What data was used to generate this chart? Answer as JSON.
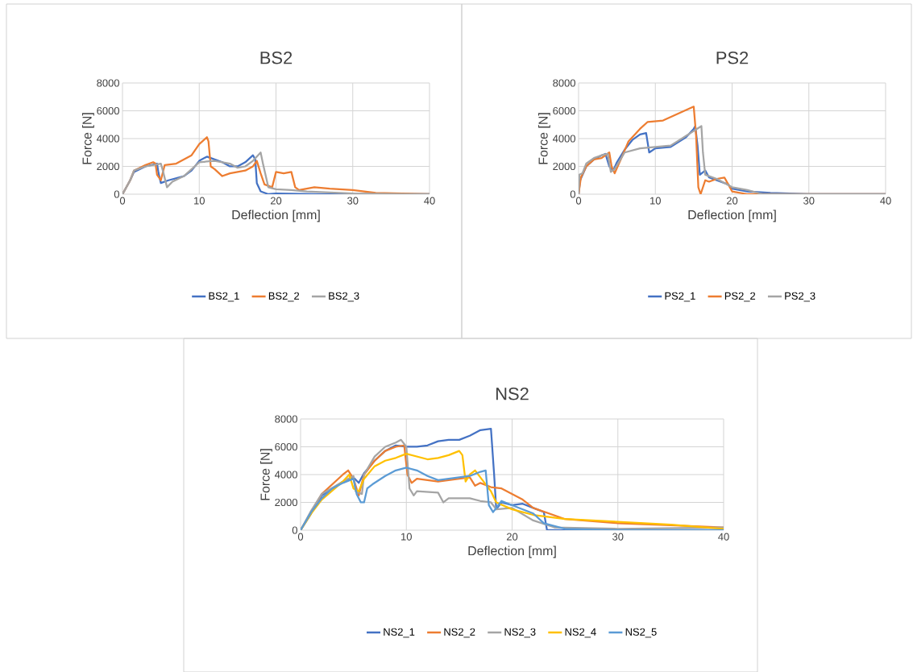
{
  "chart_data": [
    {
      "type": "line",
      "title": "BS2",
      "xlabel": "Deflection [mm]",
      "ylabel": "Force [N]",
      "xlim": [
        0,
        40
      ],
      "ylim": [
        0,
        8000
      ],
      "xticks": [
        0,
        10,
        20,
        30,
        40
      ],
      "yticks": [
        0,
        2000,
        4000,
        6000,
        8000
      ],
      "grid": true,
      "legend": "bottom",
      "series": [
        {
          "name": "BS2_1",
          "color": "#4472c4",
          "x": [
            0,
            1,
            1.5,
            3,
            4.5,
            4.7,
            5,
            6,
            8,
            9,
            10,
            11,
            12,
            13,
            14,
            15,
            16,
            17,
            17.3,
            17.5,
            18,
            19,
            20,
            25,
            40
          ],
          "values": [
            0,
            1000,
            1600,
            2000,
            2200,
            1500,
            800,
            1000,
            1300,
            1700,
            2400,
            2700,
            2500,
            2300,
            2000,
            2000,
            2300,
            2800,
            2500,
            800,
            200,
            0,
            50,
            0,
            0
          ]
        },
        {
          "name": "BS2_2",
          "color": "#ed7d31",
          "x": [
            0,
            1,
            1.5,
            3,
            4,
            4.3,
            4.5,
            5,
            5.5,
            7,
            9,
            10,
            11,
            11.2,
            11.5,
            12,
            13,
            14,
            15,
            16,
            17,
            17.5,
            18,
            18.5,
            19.5,
            20,
            21,
            22,
            22.5,
            23,
            25,
            27,
            30,
            33,
            40
          ],
          "values": [
            0,
            1000,
            1700,
            2100,
            2300,
            2200,
            1400,
            1000,
            2100,
            2200,
            2800,
            3600,
            4100,
            3800,
            2000,
            1800,
            1300,
            1500,
            1600,
            1700,
            2000,
            2400,
            1500,
            700,
            500,
            1600,
            1500,
            1600,
            500,
            300,
            500,
            400,
            300,
            100,
            0
          ]
        },
        {
          "name": "BS2_3",
          "color": "#a5a5a5",
          "x": [
            0,
            1,
            1.5,
            3,
            5,
            5.3,
            5.8,
            6.5,
            8,
            10,
            12,
            14,
            15,
            16,
            17,
            18,
            18.3,
            19,
            20,
            22,
            24,
            30,
            40
          ],
          "values": [
            0,
            1000,
            1700,
            2000,
            2200,
            1600,
            500,
            900,
            1300,
            2300,
            2400,
            2200,
            1900,
            2000,
            2400,
            3000,
            2200,
            500,
            350,
            300,
            200,
            50,
            0
          ]
        }
      ]
    },
    {
      "type": "line",
      "title": "PS2",
      "xlabel": "Deflection [mm]",
      "ylabel": "Force [N]",
      "xlim": [
        0,
        40
      ],
      "ylim": [
        0,
        8000
      ],
      "xticks": [
        0,
        10,
        20,
        30,
        40
      ],
      "yticks": [
        0,
        2000,
        4000,
        6000,
        8000
      ],
      "grid": true,
      "legend": "bottom",
      "series": [
        {
          "name": "PS2_1",
          "color": "#4472c4",
          "x": [
            0,
            0.2,
            1,
            2,
            3,
            3.5,
            4,
            4.5,
            5,
            6,
            7,
            8,
            8.8,
            9.2,
            10,
            12,
            14,
            15,
            15.2,
            15.5,
            15.8,
            16.5,
            17,
            18,
            19.5,
            20,
            22,
            25,
            30,
            40
          ],
          "values": [
            0,
            1000,
            2000,
            2500,
            2800,
            2900,
            2000,
            1700,
            2300,
            3200,
            3900,
            4300,
            4400,
            3000,
            3300,
            3400,
            4100,
            4700,
            4900,
            3500,
            1400,
            1700,
            1200,
            1000,
            700,
            400,
            200,
            100,
            0,
            0
          ]
        },
        {
          "name": "PS2_2",
          "color": "#ed7d31",
          "x": [
            0,
            0.3,
            1,
            2,
            3,
            4,
            4.3,
            4.7,
            5.5,
            6.5,
            8,
            9,
            11,
            13,
            15,
            15.3,
            15.6,
            15.9,
            16.5,
            17,
            18,
            19,
            19.5,
            20,
            22,
            40
          ],
          "values": [
            0,
            1200,
            2000,
            2500,
            2600,
            3000,
            2000,
            1500,
            2500,
            3800,
            4700,
            5200,
            5300,
            5800,
            6300,
            4300,
            500,
            0,
            1000,
            900,
            1100,
            1200,
            700,
            200,
            0,
            0
          ]
        },
        {
          "name": "PS2_3",
          "color": "#a5a5a5",
          "x": [
            0,
            0.1,
            0.5,
            1,
            2,
            3,
            3.8,
            4.2,
            4.7,
            6,
            8,
            10,
            12,
            14,
            16,
            16.2,
            16.5,
            18,
            20,
            22,
            24,
            40
          ],
          "values": [
            0,
            1400,
            1500,
            2200,
            2600,
            2800,
            2900,
            1600,
            1800,
            3000,
            3300,
            3400,
            3500,
            4200,
            4900,
            3000,
            1400,
            1100,
            500,
            300,
            0,
            0
          ]
        }
      ]
    },
    {
      "type": "line",
      "title": "NS2",
      "xlabel": "Deflection [mm]",
      "ylabel": "Force [N]",
      "xlim": [
        0,
        40
      ],
      "ylim": [
        0,
        8000
      ],
      "xticks": [
        0,
        10,
        20,
        30,
        40
      ],
      "yticks": [
        0,
        2000,
        4000,
        6000,
        8000
      ],
      "grid": true,
      "legend": "bottom",
      "series": [
        {
          "name": "NS2_1",
          "color": "#4472c4",
          "x": [
            0,
            1,
            2,
            4,
            5,
            5.5,
            6,
            7,
            8,
            9,
            10,
            11,
            12,
            13,
            14,
            15,
            16,
            17,
            18,
            18.3,
            18.5,
            19,
            20,
            21,
            22,
            23,
            23.3,
            25,
            40
          ],
          "values": [
            0,
            1200,
            2500,
            3500,
            3800,
            3400,
            4100,
            5000,
            5700,
            6100,
            6000,
            6000,
            6100,
            6400,
            6500,
            6500,
            6800,
            7200,
            7300,
            4000,
            1500,
            2000,
            1800,
            1900,
            1600,
            1300,
            0,
            0,
            0
          ]
        },
        {
          "name": "NS2_2",
          "color": "#ed7d31",
          "x": [
            0,
            1,
            2,
            3,
            4,
            4.5,
            5,
            5.5,
            6,
            7,
            8,
            9,
            9.8,
            10.1,
            10.5,
            11,
            13,
            15,
            16,
            16.5,
            17,
            18,
            19,
            20,
            21,
            22,
            25,
            30,
            35,
            40
          ],
          "values": [
            0,
            1300,
            2600,
            3300,
            4000,
            4300,
            3700,
            2500,
            4000,
            5000,
            5700,
            6000,
            6100,
            4000,
            3400,
            3700,
            3500,
            3700,
            3800,
            3200,
            3400,
            3100,
            3000,
            2600,
            2200,
            1600,
            800,
            500,
            350,
            200
          ]
        },
        {
          "name": "NS2_3",
          "color": "#a5a5a5",
          "x": [
            0,
            1,
            2,
            4,
            5,
            5.2,
            5.8,
            6,
            7,
            8,
            9,
            9.5,
            10,
            10.3,
            10.7,
            11,
            13,
            13.5,
            14,
            16,
            17,
            18,
            18.5,
            20,
            22,
            24,
            30,
            40
          ],
          "values": [
            0,
            1400,
            2600,
            3500,
            3900,
            2800,
            2600,
            4000,
            5300,
            6000,
            6300,
            6500,
            6000,
            3000,
            2500,
            2800,
            2700,
            2000,
            2300,
            2300,
            2100,
            2000,
            1500,
            1600,
            700,
            200,
            100,
            200
          ]
        },
        {
          "name": "NS2_4",
          "color": "#ffc000",
          "x": [
            0,
            1,
            2,
            4,
            4.6,
            5,
            5.5,
            6,
            7,
            8,
            9,
            10,
            11,
            12,
            13,
            14,
            15,
            15.3,
            15.6,
            16,
            16.5,
            17,
            18,
            18.5,
            20,
            22,
            25,
            30,
            35,
            40
          ],
          "values": [
            0,
            1200,
            2200,
            3500,
            4000,
            3000,
            2800,
            3700,
            4600,
            5000,
            5200,
            5500,
            5300,
            5100,
            5200,
            5400,
            5700,
            5400,
            3500,
            4000,
            4300,
            3800,
            2800,
            2000,
            1500,
            1100,
            800,
            600,
            400,
            100
          ]
        },
        {
          "name": "NS2_5",
          "color": "#5b9bd5",
          "x": [
            0,
            1,
            2,
            3,
            4,
            5,
            5.3,
            5.7,
            6,
            6.3,
            6.8,
            8,
            9,
            10,
            11,
            12,
            13,
            14,
            16,
            17,
            17.5,
            17.8,
            18.2,
            19,
            20,
            22,
            23,
            25,
            30,
            40
          ],
          "values": [
            0,
            1300,
            2300,
            3000,
            3400,
            3700,
            2600,
            2000,
            2000,
            3000,
            3300,
            3900,
            4300,
            4500,
            4300,
            3900,
            3600,
            3700,
            3900,
            4200,
            4300,
            1800,
            1300,
            2100,
            1800,
            1200,
            500,
            100,
            0,
            0
          ]
        }
      ]
    }
  ]
}
